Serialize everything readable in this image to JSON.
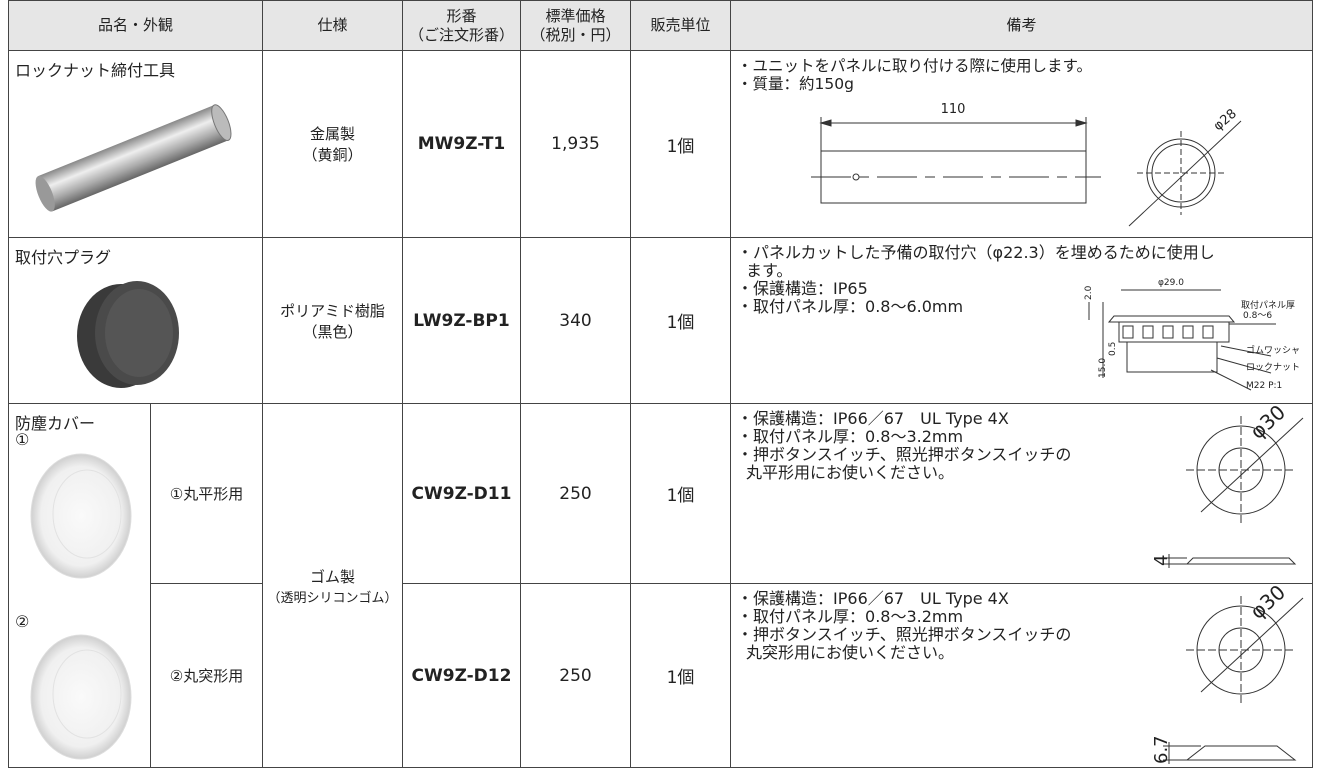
{
  "table": {
    "header": [
      [
        "品名・外観"
      ],
      [
        "仕様"
      ],
      [
        "形番",
        "（ご注文形番）"
      ],
      [
        "標準価格",
        "（税別・円）"
      ],
      [
        "販売単位"
      ],
      [
        "備考"
      ]
    ],
    "rows": [
      {
        "name": "ロックナット締付工具",
        "spec": [
          "金属製",
          "（黄銅）"
        ],
        "model": "MW9Z-T1",
        "price": "1,935",
        "unit": "1個",
        "notes": [
          "・ユニットをパネルに取り付ける際に使用します。",
          "・質量：約150g"
        ],
        "figure": {
          "labels": [
            "110",
            "φ28"
          ]
        }
      },
      {
        "name": "取付穴プラグ",
        "spec": [
          "ポリアミド樹脂",
          "（黒色）"
        ],
        "model": "LW9Z-BP1",
        "price": "340",
        "unit": "1個",
        "notes": [
          "・パネルカットした予備の取付穴（φ22.3）を埋めるために使用し",
          "ます。",
          "・保護構造：IP65",
          "・取付パネル厚：0.8～6.0mm"
        ],
        "figure": {
          "labels": [
            "φ29.0",
            "2.0",
            "15.0",
            "0.5",
            "取付パネル厚",
            "0.8～6",
            "ゴムワッシャ",
            "ロックナット",
            "M22 P:1"
          ]
        }
      }
    ],
    "group": {
      "name": "防塵カバー",
      "spec": [
        "ゴム製",
        "（透明シリコンゴム）"
      ],
      "items": [
        {
          "marker": "①",
          "variant": "①丸平形用",
          "model": "CW9Z-D11",
          "price": "250",
          "unit": "1個",
          "notes": [
            "・保護構造：IP66／67　UL Type 4X",
            "・取付パネル厚：0.8～3.2mm",
            "・押ボタンスイッチ、照光押ボタンスイッチの",
            "丸平形用にお使いください。"
          ],
          "figure": {
            "labels": [
              "φ30",
              "4"
            ]
          }
        },
        {
          "marker": "②",
          "variant": "②丸突形用",
          "model": "CW9Z-D12",
          "price": "250",
          "unit": "1個",
          "notes": [
            "・保護構造：IP66／67　UL Type 4X",
            "・取付パネル厚：0.8～3.2mm",
            "・押ボタンスイッチ、照光押ボタンスイッチの",
            "丸突形用にお使いください。"
          ],
          "figure": {
            "labels": [
              "φ30",
              "6.7"
            ]
          }
        }
      ]
    }
  }
}
